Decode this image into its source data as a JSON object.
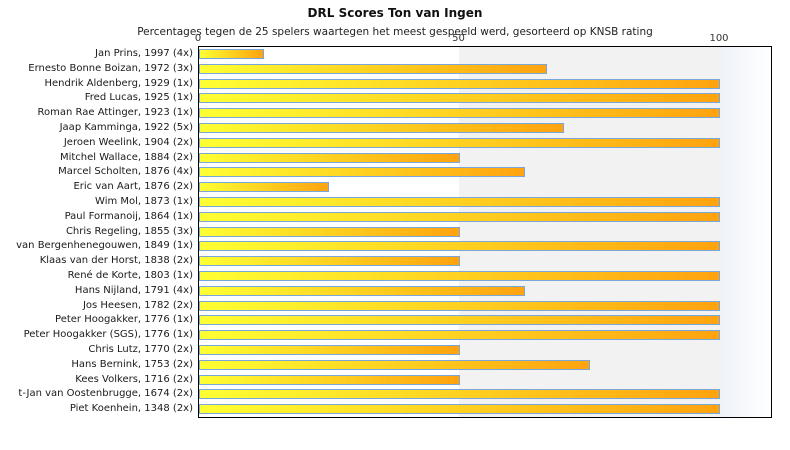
{
  "chart_data": {
    "type": "bar",
    "orientation": "horizontal",
    "title": "DRL Scores Ton van Ingen",
    "subtitle": "Percentages tegen de 25 spelers waartegen het meest gespeeld werd, gesorteerd op KNSB rating",
    "xlabel": "",
    "ylabel": "",
    "xlim": [
      0,
      100
    ],
    "xticks": [
      "0",
      "50",
      "100"
    ],
    "grid": "vertical-band",
    "legend": "none",
    "categories": [
      "Jan Prins, 1997 (4x)",
      "Ernesto Bonne Boizan, 1972 (3x)",
      "Hendrik Aldenberg, 1929 (1x)",
      "Fred Lucas, 1925 (1x)",
      "Roman Rae Attinger, 1923 (1x)",
      "Jaap Kamminga, 1922 (5x)",
      "Jeroen Weelink, 1904 (2x)",
      "Mitchel Wallace, 1884 (2x)",
      "Marcel Scholten, 1876 (4x)",
      "Eric van Aart, 1876 (2x)",
      "Wim Mol, 1873 (1x)",
      "Paul Formanoij, 1864 (1x)",
      "Chris Regeling, 1855 (3x)",
      "van Bergenhenegouwen, 1849 (1x)",
      "Klaas van der Horst, 1838 (2x)",
      "René de Korte, 1803 (1x)",
      "Hans Nijland, 1791 (4x)",
      "Jos Heesen, 1782 (2x)",
      "Peter Hoogakker, 1776 (1x)",
      "Peter Hoogakker (SGS), 1776 (1x)",
      "Chris Lutz, 1770 (2x)",
      "Hans Bernink, 1753 (2x)",
      "Kees Volkers, 1716 (2x)",
      "t-Jan van Oostenbrugge, 1674 (2x)",
      "Piet Koenhein, 1348 (2x)"
    ],
    "values": [
      12.5,
      66.7,
      100,
      100,
      100,
      70,
      100,
      50,
      62.5,
      25,
      100,
      100,
      50,
      100,
      50,
      100,
      62.5,
      100,
      100,
      100,
      50,
      75,
      50,
      100,
      100
    ],
    "colors": {
      "bar_gradient_start": "#ffff33",
      "bar_gradient_end": "#ffa30f",
      "bar_border": "#79a7d9",
      "band_50_100": "#f2f2f2",
      "band_over_100_start": "#eef3f9",
      "band_over_100_end": "#ffffff",
      "plot_border": "#000000"
    }
  }
}
